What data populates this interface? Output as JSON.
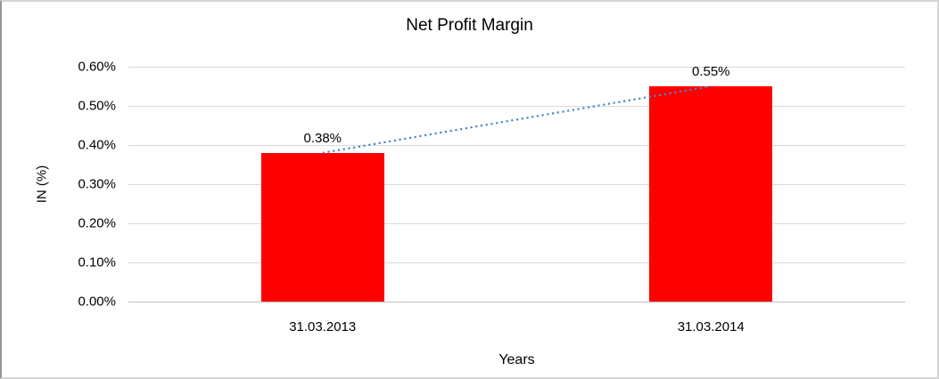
{
  "chart_data": {
    "type": "bar",
    "title": "Net Profit Margin",
    "xlabel": "Years",
    "ylabel": "IN (%)",
    "categories": [
      "31.03.2013",
      "31.03.2014"
    ],
    "values": [
      0.38,
      0.55
    ],
    "data_labels": [
      "0.38%",
      "0.55%"
    ],
    "ylim": [
      0,
      0.6
    ],
    "y_tick_values": [
      0,
      0.1,
      0.2,
      0.3,
      0.4,
      0.5,
      0.6
    ],
    "y_tick_labels": [
      "0.00%",
      "0.10%",
      "0.20%",
      "0.30%",
      "0.40%",
      "0.50%",
      "0.60%"
    ],
    "grid": true,
    "legend_position": "none",
    "colors": {
      "bar": "#FF0000",
      "trendline": "#4A86C8",
      "gridline": "#D9D9D9",
      "text": "#000000"
    },
    "trendline": {
      "style": "dotted",
      "color": "#4A86C8",
      "point_values": [
        0.38,
        0.55
      ]
    }
  }
}
